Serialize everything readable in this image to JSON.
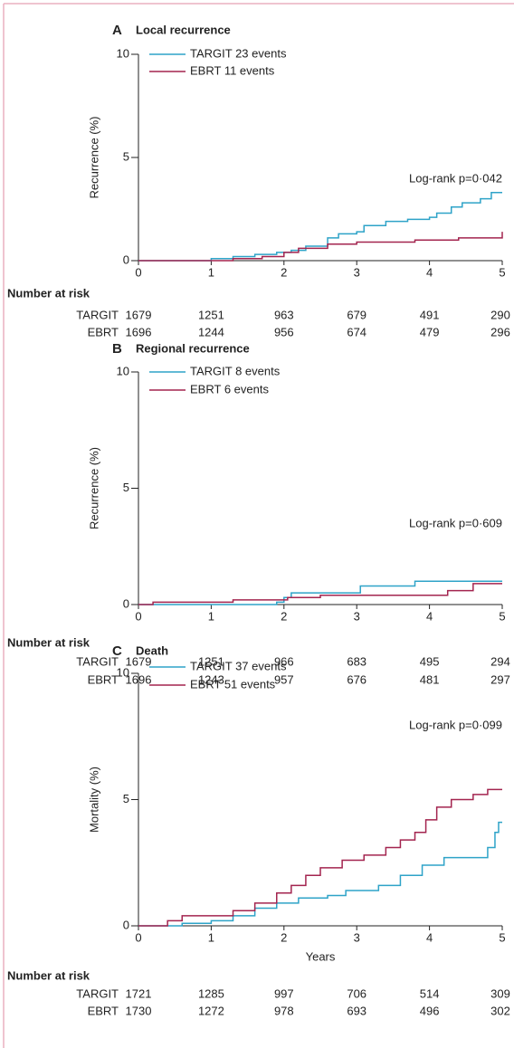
{
  "chart_data": [
    {
      "type": "line",
      "panel": "A",
      "title": "Local recurrence",
      "ylabel": "Recurrence (%)",
      "annotation": "Log-rank p=0·042",
      "xlim": [
        0,
        5
      ],
      "xticks": [
        0,
        1,
        2,
        3,
        4,
        5
      ],
      "ylim": [
        0,
        10
      ],
      "yticks": [
        0,
        5,
        10
      ],
      "series": [
        {
          "name": "TARGIT 23 events",
          "color": "#2ea3c8",
          "x": [
            0,
            1,
            1,
            1.3,
            1.3,
            1.6,
            1.6,
            1.9,
            1.9,
            2.1,
            2.1,
            2.3,
            2.3,
            2.6,
            2.6,
            2.75,
            2.75,
            3.0,
            3.0,
            3.1,
            3.1,
            3.4,
            3.4,
            3.7,
            3.7,
            4.0,
            4.0,
            4.1,
            4.1,
            4.3,
            4.3,
            4.45,
            4.45,
            4.7,
            4.7,
            4.85,
            4.85,
            5
          ],
          "values": [
            0,
            0,
            0.1,
            0.1,
            0.2,
            0.2,
            0.3,
            0.3,
            0.4,
            0.4,
            0.5,
            0.5,
            0.7,
            0.7,
            1.1,
            1.1,
            1.3,
            1.3,
            1.4,
            1.4,
            1.7,
            1.7,
            1.9,
            1.9,
            2.0,
            2.0,
            2.1,
            2.1,
            2.3,
            2.3,
            2.6,
            2.6,
            2.8,
            2.8,
            3.0,
            3.0,
            3.3,
            3.3
          ]
        },
        {
          "name": "EBRT 11 events",
          "color": "#a3244f",
          "x": [
            0,
            1.3,
            1.3,
            1.7,
            1.7,
            2.0,
            2.0,
            2.2,
            2.2,
            2.6,
            2.6,
            3.0,
            3.0,
            3.8,
            3.8,
            4.4,
            4.4,
            5,
            5
          ],
          "values": [
            0,
            0,
            0.1,
            0.1,
            0.2,
            0.2,
            0.4,
            0.4,
            0.6,
            0.6,
            0.8,
            0.8,
            0.9,
            0.9,
            1.0,
            1.0,
            1.1,
            1.1,
            1.4
          ]
        }
      ],
      "risk_table": {
        "title": "Number at risk",
        "rows": [
          {
            "label": "TARGIT",
            "values": [
              1679,
              1251,
              963,
              679,
              491,
              290
            ]
          },
          {
            "label": "EBRT",
            "values": [
              1696,
              1244,
              956,
              674,
              479,
              296
            ]
          }
        ]
      }
    },
    {
      "type": "line",
      "panel": "B",
      "title": "Regional recurrence",
      "ylabel": "Recurrence (%)",
      "annotation": "Log-rank p=0·609",
      "xlim": [
        0,
        5
      ],
      "xticks": [
        0,
        1,
        2,
        3,
        4,
        5
      ],
      "ylim": [
        0,
        10
      ],
      "yticks": [
        0,
        5,
        10
      ],
      "series": [
        {
          "name": "TARGIT 8 events",
          "color": "#2ea3c8",
          "x": [
            0,
            1.9,
            1.9,
            2.0,
            2.0,
            2.1,
            2.1,
            3.05,
            3.05,
            3.8,
            3.8,
            5
          ],
          "values": [
            0,
            0,
            0.1,
            0.1,
            0.3,
            0.3,
            0.5,
            0.5,
            0.8,
            0.8,
            1.0,
            1.0
          ]
        },
        {
          "name": "EBRT 6 events",
          "color": "#a3244f",
          "x": [
            0,
            0.2,
            0.2,
            1.3,
            1.3,
            2.05,
            2.05,
            2.5,
            2.5,
            4.25,
            4.25,
            4.6,
            4.6,
            5
          ],
          "values": [
            0,
            0,
            0.1,
            0.1,
            0.2,
            0.2,
            0.3,
            0.3,
            0.4,
            0.4,
            0.6,
            0.6,
            0.9,
            0.9
          ]
        }
      ],
      "risk_table": {
        "title": "Number at risk",
        "rows": [
          {
            "label": "TARGIT",
            "values": [
              1679,
              1251,
              966,
              683,
              495,
              294
            ]
          },
          {
            "label": "EBRT",
            "values": [
              1696,
              1243,
              957,
              676,
              481,
              297
            ]
          }
        ]
      }
    },
    {
      "type": "line",
      "panel": "C",
      "title": "Death",
      "ylabel": "Mortality (%)",
      "xlabel": "Years",
      "annotation": "Log-rank p=0·099",
      "xlim": [
        0,
        5
      ],
      "xticks": [
        0,
        1,
        2,
        3,
        4,
        5
      ],
      "ylim": [
        0,
        10
      ],
      "yticks": [
        0,
        5,
        10
      ],
      "series": [
        {
          "name": "TARGIT 37 events",
          "color": "#2ea3c8",
          "x": [
            0,
            0.6,
            0.6,
            1.0,
            1.0,
            1.3,
            1.3,
            1.6,
            1.6,
            1.9,
            1.9,
            2.2,
            2.2,
            2.6,
            2.6,
            2.85,
            2.85,
            3.3,
            3.3,
            3.6,
            3.6,
            3.9,
            3.9,
            4.2,
            4.2,
            4.8,
            4.8,
            4.9,
            4.9,
            4.95,
            4.95,
            5
          ],
          "values": [
            0,
            0,
            0.1,
            0.1,
            0.2,
            0.2,
            0.4,
            0.4,
            0.7,
            0.7,
            0.9,
            0.9,
            1.1,
            1.1,
            1.2,
            1.2,
            1.4,
            1.4,
            1.6,
            1.6,
            2.0,
            2.0,
            2.4,
            2.4,
            2.7,
            2.7,
            3.1,
            3.1,
            3.7,
            3.7,
            4.1,
            4.1
          ]
        },
        {
          "name": "EBRT 51 events",
          "color": "#a3244f",
          "x": [
            0,
            0.4,
            0.4,
            0.6,
            0.6,
            1.3,
            1.3,
            1.6,
            1.6,
            1.9,
            1.9,
            2.1,
            2.1,
            2.3,
            2.3,
            2.5,
            2.5,
            2.8,
            2.8,
            3.1,
            3.1,
            3.4,
            3.4,
            3.6,
            3.6,
            3.8,
            3.8,
            3.95,
            3.95,
            4.1,
            4.1,
            4.3,
            4.3,
            4.6,
            4.6,
            4.8,
            4.8,
            5
          ],
          "values": [
            0,
            0,
            0.2,
            0.2,
            0.4,
            0.4,
            0.6,
            0.6,
            0.9,
            0.9,
            1.3,
            1.3,
            1.6,
            1.6,
            2.0,
            2.0,
            2.3,
            2.3,
            2.6,
            2.6,
            2.8,
            2.8,
            3.1,
            3.1,
            3.4,
            3.4,
            3.7,
            3.7,
            4.2,
            4.2,
            4.7,
            4.7,
            5.0,
            5.0,
            5.2,
            5.2,
            5.4,
            5.4
          ]
        }
      ],
      "risk_table": {
        "title": "Number at risk",
        "rows": [
          {
            "label": "TARGIT",
            "values": [
              1721,
              1285,
              997,
              706,
              514,
              309
            ]
          },
          {
            "label": "EBRT",
            "values": [
              1730,
              1272,
              978,
              693,
              496,
              302
            ]
          }
        ]
      }
    }
  ]
}
